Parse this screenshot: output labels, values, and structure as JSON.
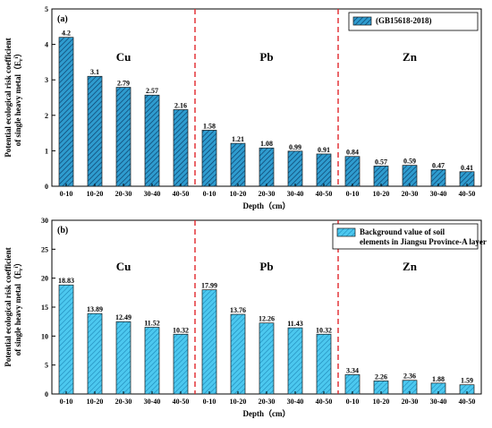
{
  "chart_data": [
    {
      "type": "bar",
      "panel_label": "(a)",
      "categories": [
        "0-10",
        "10-20",
        "20-30",
        "30-40",
        "40-50",
        "0-10",
        "10-20",
        "20-30",
        "30-40",
        "40-50",
        "0-10",
        "10-20",
        "20-30",
        "30-40",
        "40-50"
      ],
      "groups": [
        {
          "name": "Cu",
          "values": [
            4.2,
            3.1,
            2.79,
            2.57,
            2.16
          ]
        },
        {
          "name": "Pb",
          "values": [
            1.58,
            1.21,
            1.08,
            0.99,
            0.91
          ]
        },
        {
          "name": "Zn",
          "values": [
            0.84,
            0.57,
            0.59,
            0.47,
            0.41
          ]
        }
      ],
      "data_labels": [
        "4.2",
        "3.1",
        "2.79",
        "2.57",
        "2.16",
        "1.58",
        "1.21",
        "1.08",
        "0.99",
        "0.91",
        "0.84",
        "0.57",
        "0.59",
        "0.47",
        "0.41"
      ],
      "legend": [
        "(GB15618-2018)"
      ],
      "legend_position": "top-right",
      "xlabel": "Depth（cm）",
      "ylabel_lines": [
        "Potential ecological risk coefficient",
        "of single heavy metal（E_r^i）"
      ],
      "ylim": [
        0,
        5
      ],
      "yticks": [
        "0",
        "1",
        "2",
        "3",
        "4",
        "5"
      ],
      "bar_color": "#2f9ccf",
      "hatch": "dark diagonal"
    },
    {
      "type": "bar",
      "panel_label": "(b)",
      "categories": [
        "0-10",
        "10-20",
        "20-30",
        "30-40",
        "40-50",
        "0-10",
        "10-20",
        "20-30",
        "30-40",
        "40-50",
        "0-10",
        "10-20",
        "20-30",
        "30-40",
        "40-50"
      ],
      "groups": [
        {
          "name": "Cu",
          "values": [
            18.83,
            13.89,
            12.49,
            11.52,
            10.32
          ]
        },
        {
          "name": "Pb",
          "values": [
            17.99,
            13.76,
            12.26,
            11.43,
            10.32
          ]
        },
        {
          "name": "Zn",
          "values": [
            3.34,
            2.26,
            2.36,
            1.88,
            1.59
          ]
        }
      ],
      "data_labels": [
        "18.83",
        "13.89",
        "12.49",
        "11.52",
        "10.32",
        "17.99",
        "13.76",
        "12.26",
        "11.43",
        "10.32",
        "3.34",
        "2.26",
        "2.36",
        "1.88",
        "1.59"
      ],
      "legend": [
        "Background value of soil",
        "elements in Jiangsu Province-A layer"
      ],
      "legend_position": "top-right",
      "xlabel": "Depth（cm）",
      "ylabel_lines": [
        "Potential ecological risk coefficient",
        "of single heavy metal（E_r^i）"
      ],
      "ylim": [
        0,
        30
      ],
      "yticks": [
        "0",
        "5",
        "10",
        "15",
        "20",
        "25",
        "30"
      ],
      "bar_color": "#4cc8ef",
      "hatch": "light diagonal"
    }
  ]
}
